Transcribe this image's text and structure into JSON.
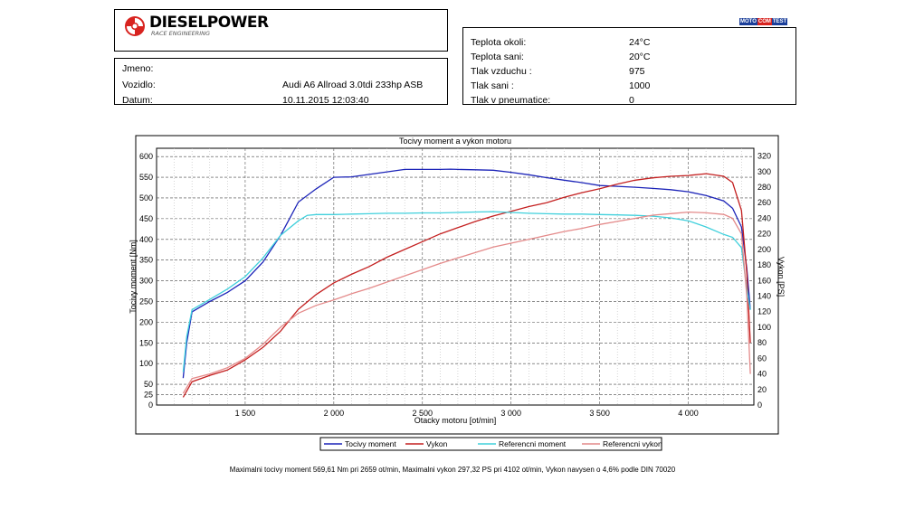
{
  "header": {
    "logo_text": "DIESELPOWER",
    "logo_sub": "RACE ENGINEERING",
    "badge": [
      "MOTO",
      "COM",
      "TEST"
    ]
  },
  "vehicle": {
    "rows": [
      {
        "label": "Jmeno:",
        "value": ""
      },
      {
        "label": "Vozidlo:",
        "value": "Audi A6 Allroad 3.0tdi 233hp ASB"
      },
      {
        "label": "Datum:",
        "value": "10.11.2015 12:03:40"
      }
    ]
  },
  "conditions": {
    "rows": [
      {
        "label": "Teplota okoli:",
        "value": "24°C"
      },
      {
        "label": "Teplota sani:",
        "value": "20°C"
      },
      {
        "label": "Tlak vzduchu :",
        "value": "975"
      },
      {
        "label": "Tlak sani :",
        "value": "1000"
      },
      {
        "label": "Tlak v pneumatice:",
        "value": "0"
      }
    ]
  },
  "chart_data": {
    "type": "line",
    "title": "Tocivy moment a vykon motoru",
    "xlabel": "Otacky motoru [ot/min]",
    "ylabel": "Tocivy moment [Nm]",
    "y2label": "Vykon [PS]",
    "xlim": [
      1000,
      4370
    ],
    "ylim": [
      0,
      620
    ],
    "y2lim": [
      0,
      330
    ],
    "xticks": [
      1500,
      2000,
      2500,
      3000,
      3500,
      4000
    ],
    "xtick_labels": [
      "1 500",
      "2 000",
      "2 500",
      "3 000",
      "3 500",
      "4 000"
    ],
    "yticks": [
      0,
      25,
      50,
      100,
      150,
      200,
      250,
      300,
      350,
      400,
      450,
      500,
      550,
      600
    ],
    "y2ticks": [
      0,
      20,
      40,
      60,
      80,
      100,
      120,
      140,
      160,
      180,
      200,
      220,
      240,
      260,
      280,
      300,
      320
    ],
    "grid": true,
    "legend_position": "bottom",
    "series": [
      {
        "name": "Tocivy moment",
        "axis": "left",
        "color": "#1c24b8",
        "x": [
          1150,
          1170,
          1200,
          1300,
          1400,
          1500,
          1600,
          1700,
          1750,
          1800,
          1900,
          2000,
          2100,
          2200,
          2300,
          2400,
          2500,
          2600,
          2659,
          2700,
          2800,
          2900,
          3000,
          3100,
          3200,
          3300,
          3400,
          3500,
          3600,
          3700,
          3800,
          3900,
          4000,
          4100,
          4200,
          4250,
          4300,
          4330,
          4350
        ],
        "y": [
          65,
          150,
          225,
          250,
          272,
          300,
          345,
          410,
          450,
          490,
          522,
          550,
          551,
          557,
          563,
          569,
          569,
          569,
          569.6,
          569,
          568,
          567,
          562,
          556,
          549,
          543,
          537,
          530,
          528,
          526,
          523,
          520,
          515,
          506,
          493,
          475,
          430,
          330,
          230
        ]
      },
      {
        "name": "Vykon",
        "axis": "right",
        "color": "#c42020",
        "x": [
          1150,
          1200,
          1300,
          1400,
          1500,
          1600,
          1700,
          1800,
          1900,
          2000,
          2100,
          2200,
          2300,
          2400,
          2500,
          2600,
          2700,
          2800,
          2900,
          3000,
          3100,
          3200,
          3300,
          3400,
          3500,
          3600,
          3700,
          3800,
          3900,
          4000,
          4102,
          4200,
          4250,
          4300,
          4330,
          4350
        ],
        "y": [
          10,
          30,
          38,
          45,
          58,
          74,
          95,
          123,
          142,
          157,
          168,
          178,
          190,
          200,
          210,
          220,
          228,
          236,
          243,
          249,
          255,
          260,
          267,
          273,
          278,
          284,
          289,
          292,
          294,
          295,
          297.3,
          294,
          286,
          250,
          170,
          80
        ]
      },
      {
        "name": "Referencni moment",
        "axis": "left",
        "color": "#40d0dc",
        "x": [
          1150,
          1170,
          1200,
          1300,
          1400,
          1500,
          1600,
          1700,
          1800,
          1850,
          1900,
          2000,
          2100,
          2200,
          2300,
          2400,
          2500,
          2600,
          2700,
          2800,
          2900,
          3000,
          3100,
          3200,
          3300,
          3400,
          3500,
          3600,
          3700,
          3800,
          3900,
          4000,
          4100,
          4200,
          4250,
          4300,
          4330,
          4350
        ],
        "y": [
          80,
          165,
          230,
          255,
          280,
          310,
          355,
          410,
          445,
          458,
          460,
          460,
          461,
          462,
          463,
          463,
          464,
          464,
          465,
          466,
          467,
          465,
          463,
          462,
          461,
          461,
          460,
          459,
          458,
          456,
          452,
          445,
          430,
          412,
          405,
          380,
          280,
          230
        ]
      },
      {
        "name": "Referencni vykon",
        "axis": "right",
        "color": "#e48a8a",
        "x": [
          1150,
          1200,
          1300,
          1400,
          1500,
          1600,
          1700,
          1800,
          1900,
          2000,
          2100,
          2200,
          2300,
          2400,
          2500,
          2600,
          2700,
          2800,
          2900,
          3000,
          3100,
          3200,
          3300,
          3400,
          3500,
          3600,
          3700,
          3800,
          3900,
          4000,
          4100,
          4200,
          4250,
          4300,
          4330,
          4350
        ],
        "y": [
          15,
          34,
          40,
          48,
          60,
          78,
          100,
          118,
          128,
          135,
          143,
          150,
          158,
          166,
          174,
          182,
          189,
          196,
          203,
          208,
          213,
          218,
          223,
          227,
          232,
          236,
          240,
          244,
          246,
          248,
          247,
          245,
          240,
          220,
          140,
          40
        ]
      }
    ]
  },
  "legend": [
    {
      "label": "Tocivy moment",
      "color": "#1c24b8"
    },
    {
      "label": "Vykon",
      "color": "#c42020"
    },
    {
      "label": "Referencni moment",
      "color": "#40d0dc"
    },
    {
      "label": "Referencni vykon",
      "color": "#e48a8a"
    }
  ],
  "footer": "Maximalni tocivy moment 569,61 Nm pri 2659 ot/min,  Maximalni vykon 297,32 PS pri 4102 ot/min,  Vykon navysen o 4,6% podle DIN 70020"
}
